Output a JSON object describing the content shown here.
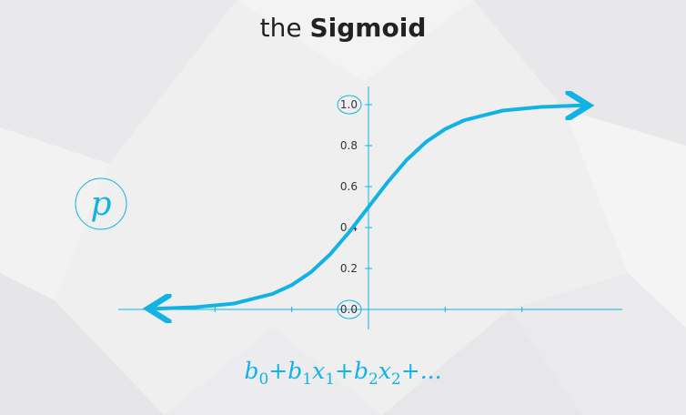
{
  "title": {
    "prefix": "the",
    "emphasis": "Sigmoid"
  },
  "chart_data": {
    "type": "line",
    "title": "the Sigmoid",
    "function": "sigmoid",
    "y_axis_label": "p",
    "x_axis_label": "b0+b1x1+b2x2+...",
    "yticks": [
      0.0,
      0.2,
      0.4,
      0.6,
      0.8,
      1.0
    ],
    "ytick_labels": [
      "0.0",
      "0.2",
      "0.4",
      "0.6",
      "0.8",
      "1.0"
    ],
    "circled_ticks": [
      "0.0",
      "1.0"
    ],
    "ylim": [
      0,
      1
    ],
    "xlim": [
      -6,
      6
    ],
    "grid": false,
    "series": [
      {
        "x": [
          -5.5,
          -4.5,
          -3.5,
          -2.5,
          -2,
          -1.5,
          -1,
          -0.5,
          0,
          0.5,
          1,
          1.5,
          2,
          2.5,
          3.5,
          4.5,
          5.5
        ],
        "y": [
          0.004,
          0.011,
          0.029,
          0.076,
          0.119,
          0.182,
          0.269,
          0.378,
          0.5,
          0.622,
          0.731,
          0.818,
          0.881,
          0.924,
          0.971,
          0.989,
          0.996
        ]
      }
    ],
    "colors": {
      "curve": "#11b3e4",
      "axes": "#11b3e4",
      "ticks": "#333333"
    }
  },
  "formula": {
    "terms": [
      {
        "coef": "b",
        "coef_sub": "0",
        "var": "",
        "var_sub": ""
      },
      {
        "coef": "b",
        "coef_sub": "1",
        "var": "x",
        "var_sub": "1"
      },
      {
        "coef": "b",
        "coef_sub": "2",
        "var": "x",
        "var_sub": "2"
      }
    ],
    "plus": "+",
    "ellipsis": "..."
  }
}
